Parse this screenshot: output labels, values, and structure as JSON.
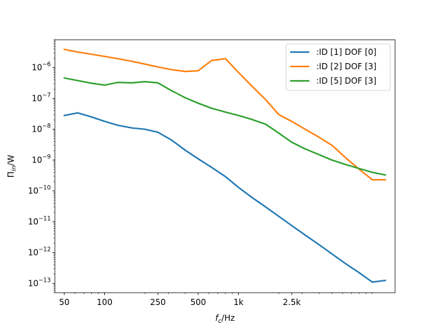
{
  "chart_data": {
    "type": "line",
    "xlabel": {
      "base": "f",
      "sub": "c",
      "suffix": "/Hz"
    },
    "ylabel": {
      "base": "Π",
      "sub": "in",
      "suffix": "/W"
    },
    "x_scale": "log",
    "y_scale": "log",
    "xlim": [
      42.5,
      14800
    ],
    "ylim": [
      5e-14,
      8e-06
    ],
    "x_ticks": [
      {
        "value": 50,
        "label": "50"
      },
      {
        "value": 100,
        "label": "100"
      },
      {
        "value": 250,
        "label": "250"
      },
      {
        "value": 500,
        "label": "500"
      },
      {
        "value": 1000,
        "label": "1k"
      },
      {
        "value": 2500,
        "label": "2.5k"
      }
    ],
    "y_ticks": [
      {
        "value": 1e-13,
        "mantissa": "10",
        "exp": "−13"
      },
      {
        "value": 1e-12,
        "mantissa": "10",
        "exp": "−12"
      },
      {
        "value": 1e-11,
        "mantissa": "10",
        "exp": "−11"
      },
      {
        "value": 1e-10,
        "mantissa": "10",
        "exp": "−10"
      },
      {
        "value": 1e-09,
        "mantissa": "10",
        "exp": "−9"
      },
      {
        "value": 1e-08,
        "mantissa": "10",
        "exp": "−8"
      },
      {
        "value": 1e-07,
        "mantissa": "10",
        "exp": "−7"
      },
      {
        "value": 1e-06,
        "mantissa": "10",
        "exp": "−6"
      }
    ],
    "grid": false,
    "legend_position": "top-right",
    "x": [
      50,
      63,
      80,
      100,
      125,
      160,
      200,
      250,
      315,
      400,
      500,
      630,
      800,
      1000,
      1250,
      1600,
      2000,
      2500,
      3150,
      4000,
      5000,
      6300,
      8000,
      10000,
      12500
    ],
    "series": [
      {
        "name": ":ID [1] DOF [0]",
        "color": "#1f77b4",
        "values": [
          2.8e-08,
          3.4e-08,
          2.5e-08,
          1.8e-08,
          1.35e-08,
          1.1e-08,
          1e-08,
          8e-09,
          4.5e-09,
          2.1e-09,
          1.1e-09,
          5.8e-10,
          2.9e-10,
          1.3e-10,
          6.3e-11,
          3e-11,
          1.5e-11,
          7.5e-12,
          3.7e-12,
          1.8e-12,
          9e-13,
          4.4e-13,
          2.2e-13,
          1.1e-13,
          1.25e-13
        ]
      },
      {
        "name": ":ID [2] DOF [3]",
        "color": "#ff7f0e",
        "values": [
          3.9e-06,
          3.2e-06,
          2.7e-06,
          2.3e-06,
          1.95e-06,
          1.6e-06,
          1.3e-06,
          1.05e-06,
          8.6e-07,
          7.5e-07,
          7.9e-07,
          1.7e-06,
          1.95e-06,
          7e-07,
          2.6e-07,
          9e-08,
          3e-08,
          1.8e-08,
          1e-08,
          5.5e-09,
          3e-09,
          1.2e-09,
          5e-10,
          2.3e-10,
          2.3e-10
        ]
      },
      {
        "name": ":ID [5] DOF [3]",
        "color": "#2ca02c",
        "values": [
          4.6e-07,
          3.8e-07,
          3.1e-07,
          2.7e-07,
          3.3e-07,
          3.2e-07,
          3.5e-07,
          3.2e-07,
          1.8e-07,
          1.05e-07,
          7e-08,
          4.8e-08,
          3.6e-08,
          2.8e-08,
          2.1e-08,
          1.45e-08,
          7.5e-09,
          3.8e-09,
          2.3e-09,
          1.5e-09,
          1e-09,
          7.2e-10,
          5.3e-10,
          4e-10,
          3.3e-10
        ]
      }
    ]
  }
}
